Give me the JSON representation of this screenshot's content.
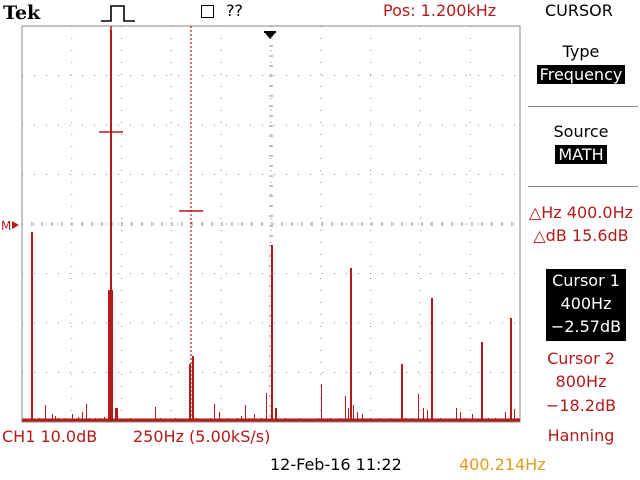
{
  "header": {
    "brand": "Tek",
    "acq_status": "??",
    "position": "Pos: 1.200kHz",
    "menu_title": "CURSOR"
  },
  "side_menu": {
    "type_label": "Type",
    "type_value": "Frequency",
    "source_label": "Source",
    "source_value": "MATH",
    "delta_hz": "△Hz 400.0Hz",
    "delta_db": "△dB 15.6dB",
    "cursor1": {
      "label": "Cursor 1",
      "freq": "400Hz",
      "level": "−2.57dB"
    },
    "cursor2": {
      "label": "Cursor 2",
      "freq": "800Hz",
      "level": "−18.2dB"
    },
    "window": "Hanning"
  },
  "status": {
    "channel": "CH1 10.0dB",
    "timebase": "250Hz (5.00kS/s)",
    "datetime": "12-Feb-16 11:22",
    "trigger_freq": "400.214Hz"
  },
  "marker": "M",
  "colors": {
    "trace": "#b51a1a",
    "grid": "#888888",
    "text_accent": "#b51a1a"
  },
  "icons": [
    "pulse-trigger-icon",
    "acquisition-stop-icon",
    "trigger-position-arrow-icon",
    "math-marker-arrow-icon"
  ]
}
